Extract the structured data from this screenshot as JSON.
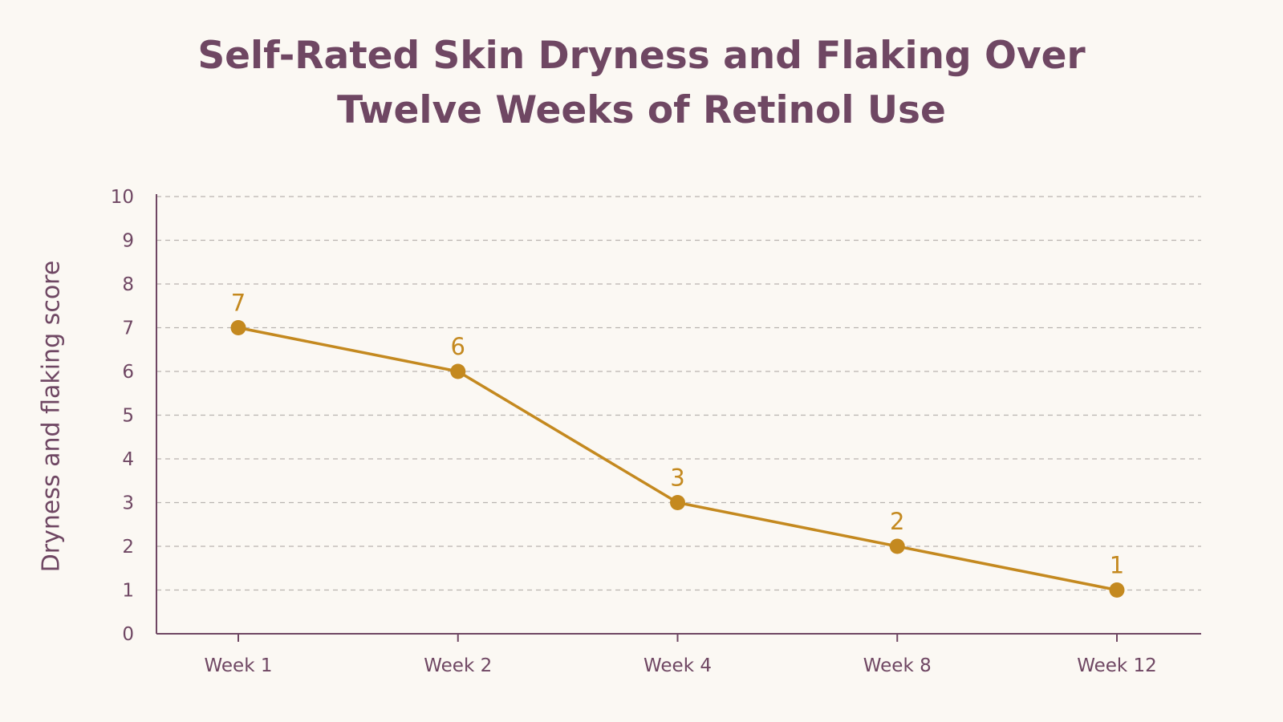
{
  "chart_data": {
    "type": "line",
    "title_lines": [
      "Self-Rated Skin Dryness and Flaking Over",
      "Twelve Weeks of Retinol Use"
    ],
    "xlabel": "",
    "ylabel": "Dryness and flaking score",
    "categories": [
      "Week 1",
      "Week 2",
      "Week 4",
      "Week 8",
      "Week 12"
    ],
    "values": [
      7,
      6,
      3,
      2,
      1
    ],
    "ylim": [
      0,
      10
    ],
    "yticks": [
      0,
      1,
      2,
      3,
      4,
      5,
      6,
      7,
      8,
      9,
      10
    ],
    "grid": true,
    "legend": "none",
    "data_labels": true,
    "colors": {
      "line": "#c4891f",
      "axis": "#6f4763",
      "text": "#6f4763",
      "grid": "#b9b3b0",
      "background": "#fbf8f3"
    }
  }
}
